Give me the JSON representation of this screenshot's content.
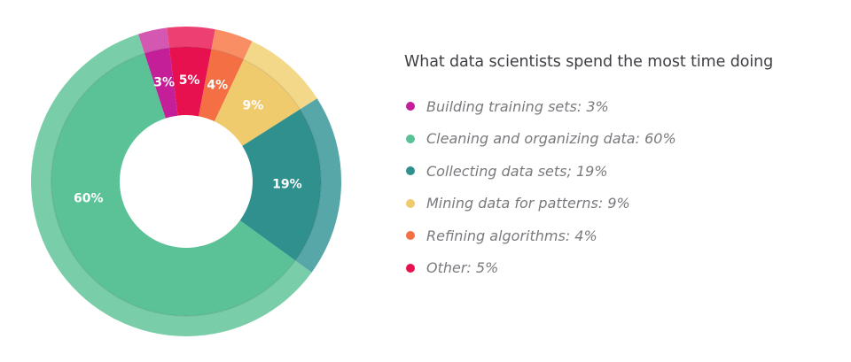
{
  "legend": {
    "title": "What data scientists spend the most time doing",
    "items": [
      {
        "label": "Building training sets: 3%",
        "color": "#c41f98"
      },
      {
        "label": "Cleaning and organizing data: 60%",
        "color": "#5bc196"
      },
      {
        "label": "Collecting data sets; 19%",
        "color": "#2f908e"
      },
      {
        "label": "Mining data for patterns: 9%",
        "color": "#f0cb6e"
      },
      {
        "label": "Refining algorithms: 4%",
        "color": "#f46f43"
      },
      {
        "label": "Other: 5%",
        "color": "#e8114f"
      }
    ]
  },
  "chart_data": {
    "type": "pie",
    "variant": "donut",
    "title": "What data scientists spend the most time doing",
    "categories": [
      "Building training sets",
      "Other",
      "Refining algorithms",
      "Mining data for patterns",
      "Collecting data sets",
      "Cleaning and organizing data"
    ],
    "values": [
      3,
      5,
      4,
      9,
      19,
      60
    ],
    "labels": [
      "3%",
      "5%",
      "4%",
      "9%",
      "19%",
      "60%"
    ],
    "colors": [
      "#c41f98",
      "#e8114f",
      "#f46f43",
      "#f0cb6e",
      "#2f908e",
      "#5bc196"
    ],
    "outer_colors": [
      "#d457b2",
      "#ee3f72",
      "#f98d64",
      "#f2d888",
      "#58a7a8",
      "#79cda8"
    ],
    "start_angle_deg": -18,
    "direction": "clockwise",
    "legend_position": "right",
    "unit": "%"
  }
}
